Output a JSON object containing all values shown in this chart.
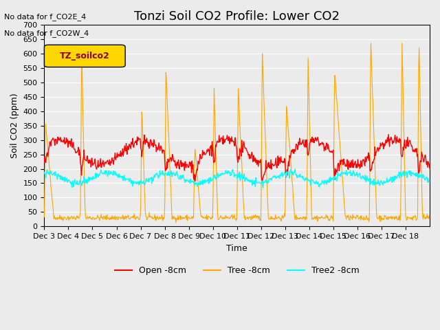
{
  "title": "Tonzi Soil CO2 Profile: Lower CO2",
  "xlabel": "Time",
  "ylabel": "Soil CO2 (ppm)",
  "ylim": [
    0,
    700
  ],
  "yticks": [
    0,
    50,
    100,
    150,
    200,
    250,
    300,
    350,
    400,
    450,
    500,
    550,
    600,
    650,
    700
  ],
  "xtick_labels": [
    "Dec 3",
    "Dec 4",
    "Dec 5",
    "Dec 6",
    "Dec 7",
    "Dec 8",
    "Dec 9",
    "Dec 10",
    "Dec 11",
    "Dec 12",
    "Dec 13",
    "Dec 14",
    "Dec 15",
    "Dec 16",
    "Dec 17",
    "Dec 18"
  ],
  "no_data_text": [
    "No data for f_CO2E_4",
    "No data for f_CO2W_4"
  ],
  "legend_box_label": "TZ_soilco2",
  "legend_box_color": "#FFD700",
  "legend_box_text_color": "#8B0000",
  "line_colors": [
    "#FF0000",
    "#FFA500",
    "#00FFFF"
  ],
  "line_labels": [
    "Open -8cm",
    "Tree -8cm",
    "Tree2 -8cm"
  ],
  "plot_bg_color": "#EBEBEB",
  "grid_color": "#FFFFFF",
  "title_fontsize": 13,
  "label_fontsize": 9,
  "tick_fontsize": 8
}
